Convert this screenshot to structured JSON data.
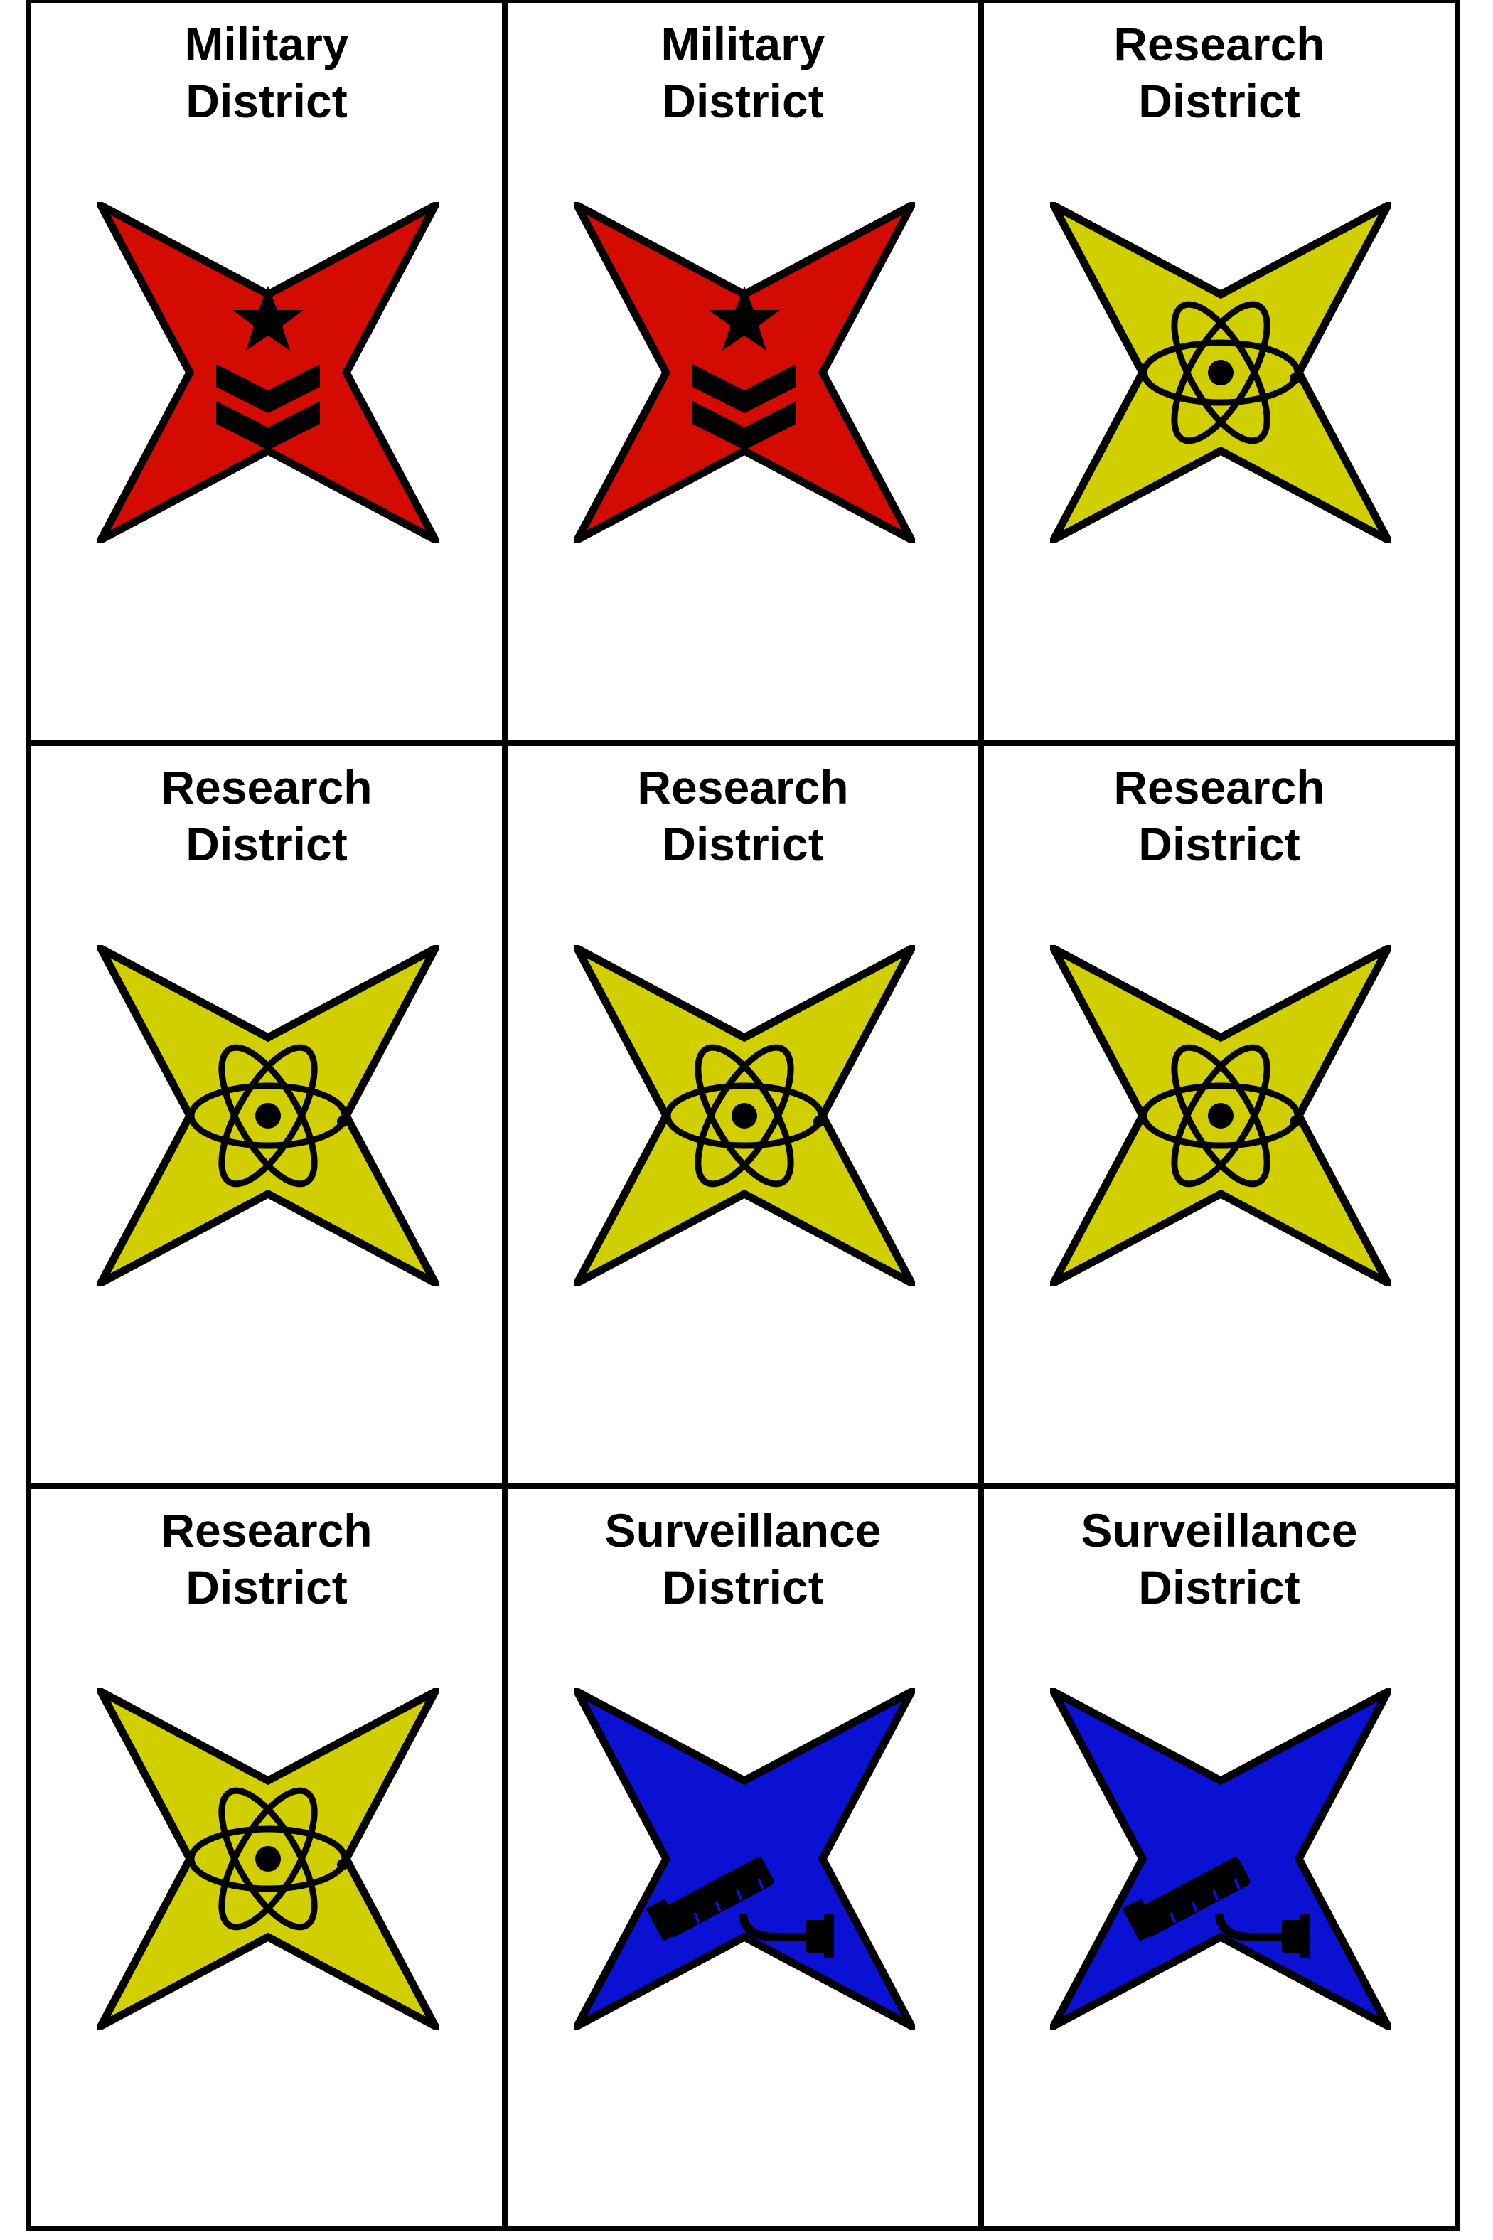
{
  "colors": {
    "military": "#d40b00",
    "research": "#d2cf00",
    "surveillance": "#0a11d2",
    "outline": "#000000"
  },
  "cards": [
    {
      "line1": "Military",
      "line2": "District",
      "type": "military",
      "icon": "star-chevrons-icon"
    },
    {
      "line1": "Military",
      "line2": "District",
      "type": "military",
      "icon": "star-chevrons-icon"
    },
    {
      "line1": "Research",
      "line2": "District",
      "type": "research",
      "icon": "atom-icon"
    },
    {
      "line1": "Research",
      "line2": "District",
      "type": "research",
      "icon": "atom-icon"
    },
    {
      "line1": "Research",
      "line2": "District",
      "type": "research",
      "icon": "atom-icon"
    },
    {
      "line1": "Research",
      "line2": "District",
      "type": "research",
      "icon": "atom-icon"
    },
    {
      "line1": "Research",
      "line2": "District",
      "type": "research",
      "icon": "atom-icon"
    },
    {
      "line1": "Surveillance",
      "line2": "District",
      "type": "surveillance",
      "icon": "security-camera-icon"
    },
    {
      "line1": "Surveillance",
      "line2": "District",
      "type": "surveillance",
      "icon": "security-camera-icon"
    }
  ]
}
